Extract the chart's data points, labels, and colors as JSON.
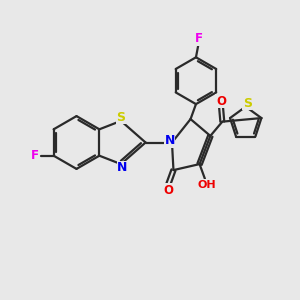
{
  "bg_color": "#e8e8e8",
  "bond_color": "#2a2a2a",
  "bond_lw": 1.6,
  "atom_colors": {
    "N": "#0000ee",
    "O": "#ee0000",
    "S": "#cccc00",
    "F": "#ee00ee"
  },
  "font_size": 8.5,
  "figsize": [
    3.0,
    3.0
  ],
  "dpi": 100
}
